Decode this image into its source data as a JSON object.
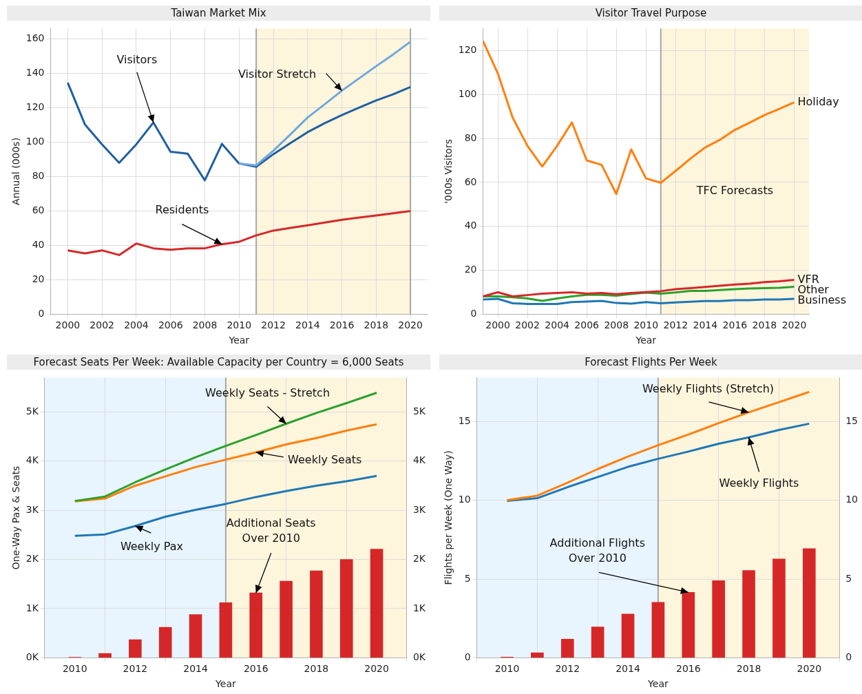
{
  "chart_data": [
    {
      "type": "line",
      "title": "Taiwan Market Mix",
      "xlabel": "Year",
      "ylabel": "Annual (000s)",
      "x": [
        2000,
        2001,
        2002,
        2003,
        2004,
        2005,
        2006,
        2007,
        2008,
        2009,
        2010,
        2011,
        2012,
        2013,
        2014,
        2015,
        2016,
        2017,
        2018,
        2019,
        2020
      ],
      "series": [
        {
          "color": "#6fa8dc",
          "values": [
            null,
            null,
            null,
            null,
            null,
            null,
            null,
            null,
            null,
            null,
            87.6,
            86.5,
            95,
            104.5,
            114.3,
            122,
            129.9,
            137,
            144.1,
            151,
            158.3
          ]
        },
        {
          "color": "#1f5fa0",
          "values": [
            134.5,
            110.3,
            98.7,
            88,
            98.7,
            111.4,
            94.4,
            93.3,
            77.8,
            99,
            87.6,
            85.6,
            93,
            99.5,
            105.8,
            111,
            115.7,
            120,
            124.2,
            127.8,
            132
          ]
        },
        {
          "color": "#d62728",
          "values": [
            37.1,
            35.4,
            37.1,
            34.4,
            41.1,
            38.3,
            37.5,
            38.3,
            38.3,
            40.7,
            42.1,
            45.8,
            48.6,
            50.2,
            51.7,
            53.3,
            54.9,
            56.2,
            57.4,
            58.7,
            60
          ]
        }
      ],
      "xlim": [
        1999,
        2021
      ],
      "xticks": [
        2000,
        2002,
        2004,
        2006,
        2008,
        2010,
        2012,
        2014,
        2016,
        2018,
        2020
      ],
      "ylim": [
        0,
        166
      ],
      "yticks": [
        0,
        20,
        40,
        60,
        80,
        100,
        120,
        140,
        160
      ],
      "grid": true,
      "legend": false,
      "bands": [
        {
          "axis": "x",
          "from": 2011,
          "to": 2020,
          "color": "#fdf5dc"
        }
      ],
      "ref_lines": [
        {
          "axis": "x",
          "value": 2011,
          "color": "#a6a6a6"
        },
        {
          "axis": "x",
          "value": 2020,
          "color": "#a6a6a6"
        }
      ],
      "annotations": [
        {
          "text": "Visitors",
          "x": 2005,
          "y": 111.4
        },
        {
          "text": "Visitor Stretch",
          "x": 2016,
          "y": 129.9
        },
        {
          "text": "Residents",
          "x": 2009,
          "y": 40.7
        }
      ]
    },
    {
      "type": "line",
      "title": "Visitor Travel Purpose",
      "xlabel": "Year",
      "ylabel": "'000s Visitors",
      "x": [
        1999,
        2000,
        2001,
        2002,
        2003,
        2004,
        2005,
        2006,
        2007,
        2008,
        2009,
        2010,
        2011,
        2012,
        2013,
        2014,
        2015,
        2016,
        2017,
        2018,
        2019,
        2020
      ],
      "series": [
        {
          "name": "Holiday",
          "color": "#ff7f0e",
          "values": [
            124.3,
            109.6,
            89.5,
            76.6,
            67.2,
            76.6,
            87.3,
            70,
            68,
            54.7,
            75,
            61.8,
            59.8,
            65.2,
            70.8,
            75.9,
            79.4,
            83.9,
            87.2,
            90.6,
            93.4,
            96.4
          ]
        },
        {
          "name": "VFR",
          "color": "#d62728",
          "values": [
            8.1,
            10,
            8.1,
            8.7,
            9.4,
            9.7,
            10,
            9.4,
            9.7,
            9.1,
            9.7,
            10.1,
            10.5,
            11.4,
            11.9,
            12.4,
            13,
            13.5,
            13.9,
            14.6,
            15,
            15.6
          ]
        },
        {
          "name": "Other",
          "color": "#2ca02c",
          "values": [
            8.1,
            8.1,
            7.7,
            7.2,
            6.1,
            7.2,
            8.1,
            8.8,
            8.8,
            8.4,
            9.2,
            9.8,
            9.4,
            9.9,
            10.6,
            10.6,
            11,
            11.4,
            11.7,
            11.9,
            12,
            12.5
          ]
        },
        {
          "name": "Business",
          "color": "#1f77b4",
          "values": [
            6.7,
            7,
            5,
            4.7,
            4.7,
            4.7,
            5.5,
            5.8,
            6.1,
            5.1,
            4.8,
            5.5,
            5,
            5.4,
            5.7,
            6,
            6,
            6.4,
            6.4,
            6.7,
            6.7,
            7
          ]
        }
      ],
      "xlim": [
        1999,
        2021
      ],
      "xticks": [
        2000,
        2002,
        2004,
        2006,
        2008,
        2010,
        2012,
        2014,
        2016,
        2018,
        2020
      ],
      "ylim": [
        0,
        130
      ],
      "yticks": [
        0,
        20,
        40,
        60,
        80,
        100,
        120
      ],
      "grid": true,
      "legend": false,
      "bands": [
        {
          "axis": "x",
          "from": 2011,
          "to": 2021,
          "color": "#fdf5dc",
          "label": "TFC Forecasts"
        }
      ],
      "ref_lines": [
        {
          "axis": "x",
          "value": 2011,
          "color": "#a6a6a6"
        }
      ]
    },
    {
      "type": "line",
      "title": "Forecast Seats Per Week: Available Capacity per Country = 6,000 Seats",
      "xlabel": "Year",
      "ylabel": "One-Way Pax & Seats",
      "x": [
        2010,
        2011,
        2012,
        2013,
        2014,
        2015,
        2016,
        2017,
        2018,
        2019,
        2020
      ],
      "series": [
        {
          "type": "bar",
          "color": "#d62728",
          "values": [
            10,
            90,
            370,
            620,
            880,
            1120,
            1320,
            1560,
            1770,
            2000,
            2210
          ]
        },
        {
          "color": "#2ca02c",
          "values": [
            3190,
            3280,
            3570,
            3830,
            4080,
            4310,
            4530,
            4760,
            4980,
            5180,
            5390
          ]
        },
        {
          "color": "#ff7f0e",
          "values": [
            3180,
            3240,
            3500,
            3690,
            3880,
            4030,
            4180,
            4340,
            4470,
            4620,
            4750
          ]
        },
        {
          "color": "#1f77b4",
          "values": [
            2480,
            2510,
            2680,
            2870,
            3010,
            3130,
            3270,
            3390,
            3500,
            3590,
            3700
          ]
        }
      ],
      "xlim": [
        2009,
        2021
      ],
      "xticks": [
        2010,
        2012,
        2014,
        2016,
        2018,
        2020
      ],
      "ylim": [
        0,
        5700
      ],
      "yticks": [
        {
          "value": 0,
          "label": "0K"
        },
        {
          "value": 1000,
          "label": "1K"
        },
        {
          "value": 2000,
          "label": "2K"
        },
        {
          "value": 3000,
          "label": "3K"
        },
        {
          "value": 4000,
          "label": "4K"
        },
        {
          "value": 5000,
          "label": "5K"
        }
      ],
      "y2lim": [
        0,
        5700
      ],
      "y2ticks": [
        {
          "value": 0,
          "label": "0K"
        },
        {
          "value": 1000,
          "label": "1K"
        },
        {
          "value": 2000,
          "label": "2K"
        },
        {
          "value": 3000,
          "label": "3K"
        },
        {
          "value": 4000,
          "label": "4K"
        },
        {
          "value": 5000,
          "label": "5K"
        }
      ],
      "grid": true,
      "legend": false,
      "bands": [
        {
          "axis": "x",
          "from": 2009,
          "to": 2015,
          "color": "#e8f5fe"
        },
        {
          "axis": "x",
          "from": 2015,
          "to": 2021,
          "color": "#fdf5dc"
        }
      ],
      "ref_lines": [
        {
          "axis": "x",
          "value": 2015,
          "color": "#a6a6a6"
        }
      ],
      "annotations": [
        {
          "text": "Weekly Seats - Stretch",
          "x": 2017,
          "y": 4760
        },
        {
          "text": "Weekly Seats",
          "x": 2016,
          "y": 4180
        },
        {
          "text": "Weekly Pax",
          "x": 2012,
          "y": 2680
        },
        {
          "text": "Additional Seats\nOver 2010",
          "x": 2016,
          "y": 1320
        }
      ]
    },
    {
      "type": "line",
      "title": "Forecast Flights Per Week",
      "xlabel": "Year",
      "ylabel": "Flights per Week (One Way)",
      "x": [
        2010,
        2011,
        2012,
        2013,
        2014,
        2015,
        2016,
        2017,
        2018,
        2019,
        2020
      ],
      "series": [
        {
          "type": "bar",
          "color": "#d62728",
          "values": [
            0.05,
            0.32,
            1.18,
            1.96,
            2.78,
            3.52,
            4.16,
            4.9,
            5.55,
            6.28,
            6.93
          ]
        },
        {
          "color": "#ff7f0e",
          "values": [
            10.01,
            10.3,
            11.12,
            11.99,
            12.78,
            13.5,
            14.18,
            14.9,
            15.59,
            16.24,
            16.89
          ]
        },
        {
          "color": "#1f77b4",
          "values": [
            9.97,
            10.14,
            10.84,
            11.48,
            12.13,
            12.64,
            13.1,
            13.6,
            14,
            14.47,
            14.87
          ]
        }
      ],
      "xlim": [
        2009,
        2021
      ],
      "xticks": [
        2010,
        2012,
        2014,
        2016,
        2018,
        2020
      ],
      "ylim": [
        0,
        17.8
      ],
      "yticks": [
        0,
        5,
        10,
        15
      ],
      "y2lim": [
        0,
        17.8
      ],
      "y2ticks": [
        0,
        5,
        10,
        15
      ],
      "grid": true,
      "legend": false,
      "bands": [
        {
          "axis": "x",
          "from": 2009,
          "to": 2015,
          "color": "#e8f5fe"
        },
        {
          "axis": "x",
          "from": 2015,
          "to": 2021,
          "color": "#fdf5dc"
        }
      ],
      "ref_lines": [
        {
          "axis": "x",
          "value": 2015,
          "color": "#a6a6a6"
        }
      ],
      "annotations": [
        {
          "text": "Weekly Flights (Stretch)",
          "x": 2018,
          "y": 15.59
        },
        {
          "text": "Weekly Flights",
          "x": 2018,
          "y": 14
        },
        {
          "text": "Additional Flights\nOver 2010",
          "x": 2016,
          "y": 4.16
        }
      ]
    }
  ]
}
